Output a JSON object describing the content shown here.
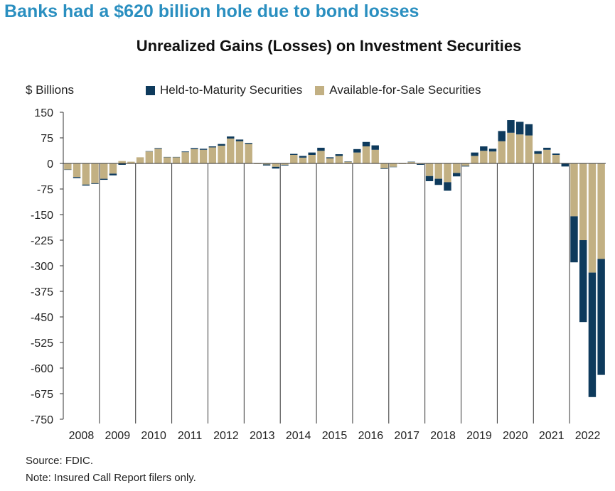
{
  "headline": "Banks had a $620 billion hole due to bond losses",
  "footer": {
    "source": "Source: FDIC.",
    "note": "Note: Insured Call Report filers only."
  },
  "colors": {
    "held_to_maturity": "#0e3a5c",
    "available_for_sale": "#c2b083",
    "headline": "#2a8fc0"
  },
  "chart_data": {
    "type": "bar",
    "stacked": true,
    "title": "Unrealized Gains (Losses) on Investment Securities",
    "ylabel": "$ Billions",
    "xlabel": "",
    "ylim": [
      -750,
      150
    ],
    "yticks": [
      150,
      75,
      0,
      -75,
      -150,
      -225,
      -300,
      -375,
      -450,
      -525,
      -600,
      -675,
      -750
    ],
    "xticks": [
      "2008",
      "2009",
      "2010",
      "2011",
      "2012",
      "2013",
      "2014",
      "2015",
      "2016",
      "2017",
      "2018",
      "2019",
      "2020",
      "2021",
      "2022"
    ],
    "legend": "top",
    "grid": false,
    "quarters_per_year": 4,
    "series": [
      {
        "name": "Held-to-Maturity Securities",
        "color": "#0e3a5c",
        "values": [
          -1,
          -3,
          -3,
          -2,
          -3,
          -5,
          -4,
          -1,
          0,
          1,
          2,
          1,
          1,
          2,
          3,
          3,
          3,
          5,
          6,
          5,
          3,
          0,
          -3,
          -5,
          -2,
          3,
          5,
          7,
          9,
          3,
          5,
          1,
          10,
          13,
          13,
          -2,
          -1,
          1,
          1,
          -2,
          -15,
          -18,
          -25,
          -10,
          -2,
          10,
          13,
          8,
          30,
          37,
          37,
          33,
          8,
          6,
          4,
          -8,
          -135,
          -240,
          -365,
          -340
        ]
      },
      {
        "name": "Available-for-Sale Securities",
        "color": "#c2b083",
        "values": [
          -18,
          -40,
          -62,
          -58,
          -45,
          -30,
          7,
          5,
          18,
          35,
          43,
          18,
          18,
          33,
          42,
          40,
          47,
          52,
          73,
          65,
          57,
          -2,
          -3,
          -10,
          -4,
          25,
          17,
          25,
          37,
          15,
          22,
          5,
          32,
          50,
          40,
          -14,
          -10,
          -2,
          4,
          -2,
          -37,
          -45,
          -55,
          -28,
          -7,
          22,
          37,
          35,
          65,
          90,
          85,
          82,
          28,
          40,
          25,
          -1,
          -155,
          -225,
          -320,
          -280
        ]
      }
    ]
  }
}
